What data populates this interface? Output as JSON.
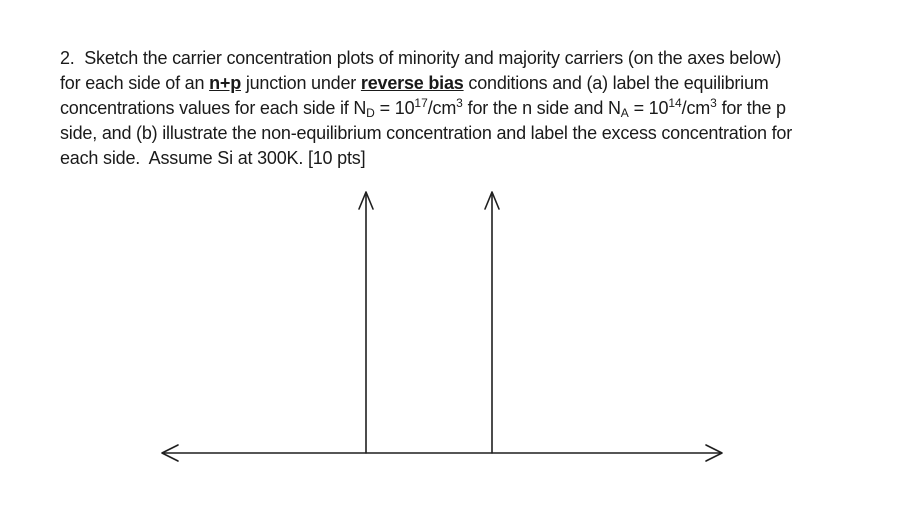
{
  "page": {
    "background": "#ffffff",
    "text_color": "#1a1a1a"
  },
  "question": {
    "lines": [
      [
        {
          "text": "2.  Sketch the carrier concentration plots of minority and majority carriers (on the axes below)"
        }
      ],
      [
        {
          "text": "for each side of an "
        },
        {
          "text": "n+p",
          "style": "bold-underline"
        },
        {
          "text": " junction under "
        },
        {
          "text": "reverse bias",
          "style": "bold-underline"
        },
        {
          "text": " conditions and (a) label the equilibrium"
        }
      ],
      [
        {
          "text": "concentrations values for each side if N"
        },
        {
          "text": "D",
          "style": "sub"
        },
        {
          "text": " = 10"
        },
        {
          "text": "17",
          "style": "sup"
        },
        {
          "text": "/cm"
        },
        {
          "text": "3",
          "style": "sup"
        },
        {
          "text": " for the n side and N"
        },
        {
          "text": "A",
          "style": "sub"
        },
        {
          "text": " = 10"
        },
        {
          "text": "14",
          "style": "sup"
        },
        {
          "text": "/cm"
        },
        {
          "text": "3",
          "style": "sup"
        },
        {
          "text": " for the p"
        }
      ],
      [
        {
          "text": "side, and (b) illustrate the non-equilibrium concentration and label the excess concentration for"
        }
      ],
      [
        {
          "text": "each side.  Assume Si at 300K. [10 pts]"
        }
      ]
    ]
  },
  "diagram": {
    "axis_color": "#1f1f1f",
    "description": "Blank sketching axes: two upward-pointing vertical axes (n side and p side) rising from a shared horizontal axis with arrowheads on both ends; no labels or tick marks",
    "elements": [
      {
        "name": "horizontal-axis",
        "arrows": "both-ends"
      },
      {
        "name": "left-vertical-axis",
        "arrows": "top"
      },
      {
        "name": "right-vertical-axis",
        "arrows": "top"
      }
    ]
  }
}
